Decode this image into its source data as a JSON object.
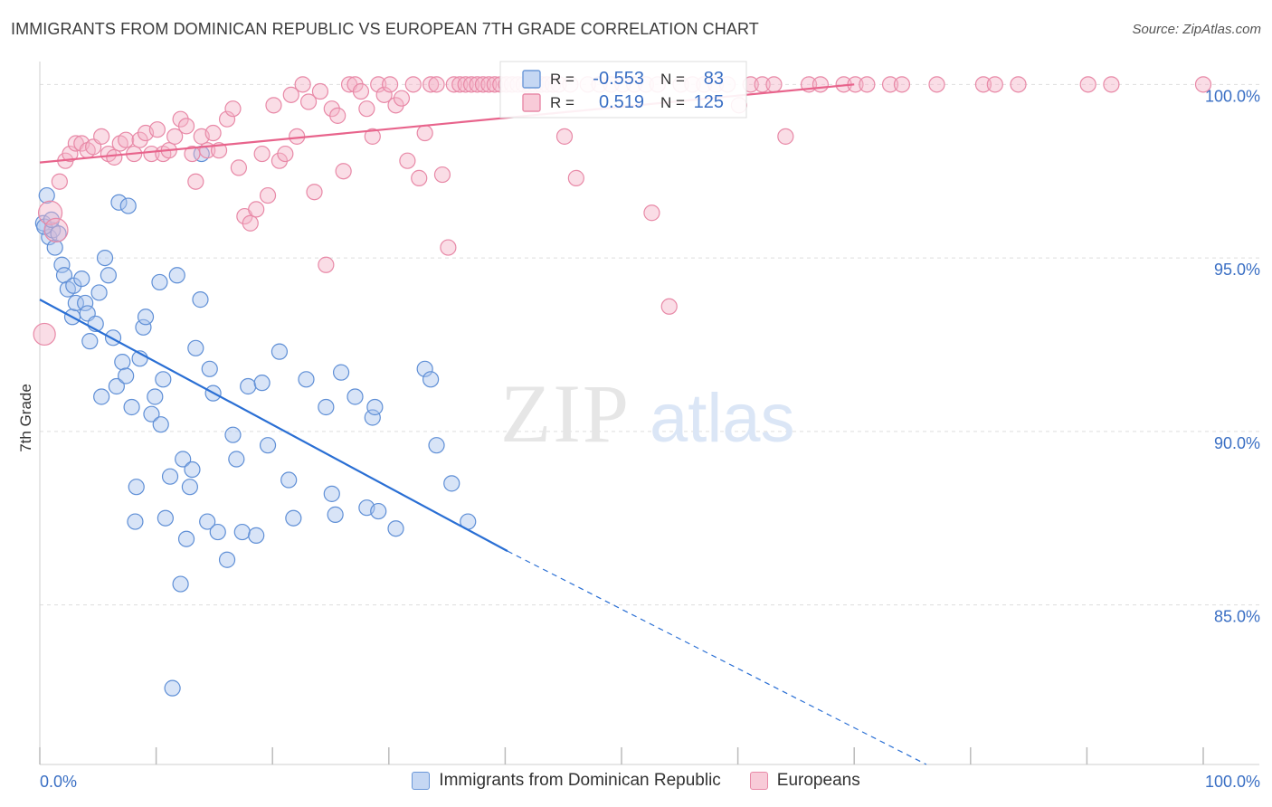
{
  "title": "IMMIGRANTS FROM DOMINICAN REPUBLIC VS EUROPEAN 7TH GRADE CORRELATION CHART",
  "source": "Source: ZipAtlas.com",
  "watermark": {
    "zip": "ZIP",
    "atlas": "atlas"
  },
  "colors": {
    "blue_fill": "#a9c4ee",
    "blue_stroke": "#5f8fd6",
    "blue_line": "#2a6fd4",
    "pink_fill": "#f5b4c7",
    "pink_stroke": "#e889a7",
    "pink_line": "#e8648c",
    "axis_text": "#3a6fc4",
    "grid": "#dddddd"
  },
  "stats_legend": {
    "rows": [
      {
        "r_label": "R =",
        "r_value": "-0.553",
        "n_label": "N =",
        "n_value": "83",
        "series": "blue"
      },
      {
        "r_label": "R =",
        "r_value": "0.519",
        "n_label": "N =",
        "n_value": "125",
        "series": "pink"
      }
    ]
  },
  "chart_data": {
    "type": "scatter",
    "title": "IMMIGRANTS FROM DOMINICAN REPUBLIC VS EUROPEAN 7TH GRADE CORRELATION CHART",
    "xlabel": "",
    "ylabel": "7th Grade",
    "xlim": [
      0,
      100
    ],
    "ylim": [
      80.4,
      100.4
    ],
    "x_tick_labels": [
      "0.0%",
      "100.0%"
    ],
    "y_ticks": [
      85,
      90,
      95,
      100
    ],
    "y_tick_labels": [
      "85.0%",
      "90.0%",
      "95.0%",
      "100.0%"
    ],
    "grid": true,
    "legend_placement": "bottom-center",
    "series": [
      {
        "name": "Immigrants from Dominican Republic",
        "color": "blue",
        "trend": {
          "x": [
            0,
            40.2
          ],
          "y": [
            93.8,
            86.55
          ],
          "dashed_to": [
            76.2,
            80.4
          ]
        },
        "points": [
          [
            0.3,
            96.0
          ],
          [
            0.6,
            96.8
          ],
          [
            0.8,
            95.6
          ],
          [
            1.1,
            95.8
          ],
          [
            1.3,
            95.3
          ],
          [
            1.6,
            95.7
          ],
          [
            1.9,
            94.8
          ],
          [
            2.1,
            94.5
          ],
          [
            2.4,
            94.1
          ],
          [
            2.8,
            93.3
          ],
          [
            2.9,
            94.2
          ],
          [
            3.1,
            93.7
          ],
          [
            3.6,
            94.4
          ],
          [
            3.9,
            93.7
          ],
          [
            4.1,
            93.4
          ],
          [
            4.3,
            92.6
          ],
          [
            4.8,
            93.1
          ],
          [
            5.1,
            94.0
          ],
          [
            5.3,
            91.0
          ],
          [
            5.6,
            95.0
          ],
          [
            5.9,
            94.5
          ],
          [
            6.3,
            92.7
          ],
          [
            6.6,
            91.3
          ],
          [
            6.8,
            96.6
          ],
          [
            7.1,
            92.0
          ],
          [
            7.4,
            91.6
          ],
          [
            7.6,
            96.5
          ],
          [
            7.9,
            90.7
          ],
          [
            8.3,
            88.4
          ],
          [
            8.2,
            87.4
          ],
          [
            8.6,
            92.1
          ],
          [
            8.9,
            93.0
          ],
          [
            9.1,
            93.3
          ],
          [
            9.6,
            90.5
          ],
          [
            9.9,
            91.0
          ],
          [
            10.3,
            94.3
          ],
          [
            10.4,
            90.2
          ],
          [
            10.6,
            91.5
          ],
          [
            10.8,
            87.5
          ],
          [
            11.2,
            88.7
          ],
          [
            11.4,
            82.6
          ],
          [
            11.8,
            94.5
          ],
          [
            12.1,
            85.6
          ],
          [
            12.3,
            89.2
          ],
          [
            12.6,
            86.9
          ],
          [
            12.9,
            88.4
          ],
          [
            13.1,
            88.9
          ],
          [
            13.4,
            92.4
          ],
          [
            13.8,
            93.8
          ],
          [
            13.9,
            98.0
          ],
          [
            14.4,
            87.4
          ],
          [
            14.6,
            91.8
          ],
          [
            14.9,
            91.1
          ],
          [
            15.3,
            87.1
          ],
          [
            16.1,
            86.3
          ],
          [
            16.6,
            89.9
          ],
          [
            16.9,
            89.2
          ],
          [
            17.4,
            87.1
          ],
          [
            17.9,
            91.3
          ],
          [
            18.6,
            87.0
          ],
          [
            19.1,
            91.4
          ],
          [
            19.6,
            89.6
          ],
          [
            20.6,
            92.3
          ],
          [
            21.4,
            88.6
          ],
          [
            21.8,
            87.5
          ],
          [
            22.9,
            91.5
          ],
          [
            24.6,
            90.7
          ],
          [
            25.1,
            88.2
          ],
          [
            25.4,
            87.6
          ],
          [
            25.9,
            91.7
          ],
          [
            27.1,
            91.0
          ],
          [
            28.1,
            87.8
          ],
          [
            28.6,
            90.4
          ],
          [
            28.8,
            90.7
          ],
          [
            29.1,
            87.7
          ],
          [
            30.6,
            87.2
          ],
          [
            33.1,
            91.8
          ],
          [
            33.6,
            91.5
          ],
          [
            34.1,
            89.6
          ],
          [
            35.4,
            88.5
          ],
          [
            36.8,
            87.4
          ],
          [
            0.4,
            95.9
          ],
          [
            1.0,
            96.1
          ]
        ]
      },
      {
        "name": "Europeans",
        "color": "pink",
        "trend": {
          "x": [
            0,
            70
          ],
          "y": [
            97.75,
            100.0
          ]
        },
        "points": [
          [
            0.4,
            92.8
          ],
          [
            0.9,
            96.3
          ],
          [
            1.4,
            95.8
          ],
          [
            1.7,
            97.2
          ],
          [
            2.2,
            97.8
          ],
          [
            2.6,
            98.0
          ],
          [
            3.1,
            98.3
          ],
          [
            3.6,
            98.3
          ],
          [
            4.1,
            98.1
          ],
          [
            4.6,
            98.2
          ],
          [
            5.3,
            98.5
          ],
          [
            5.9,
            98.0
          ],
          [
            6.4,
            97.9
          ],
          [
            6.9,
            98.3
          ],
          [
            7.4,
            98.4
          ],
          [
            8.1,
            98.0
          ],
          [
            8.6,
            98.4
          ],
          [
            9.1,
            98.6
          ],
          [
            9.6,
            98.0
          ],
          [
            10.1,
            98.7
          ],
          [
            10.6,
            98.0
          ],
          [
            11.1,
            98.1
          ],
          [
            11.6,
            98.5
          ],
          [
            12.1,
            99.0
          ],
          [
            12.6,
            98.8
          ],
          [
            13.1,
            98.0
          ],
          [
            13.4,
            97.2
          ],
          [
            13.9,
            98.5
          ],
          [
            14.4,
            98.1
          ],
          [
            14.9,
            98.6
          ],
          [
            15.4,
            98.1
          ],
          [
            16.1,
            99.0
          ],
          [
            16.6,
            99.3
          ],
          [
            17.1,
            97.6
          ],
          [
            17.6,
            96.2
          ],
          [
            18.1,
            96.0
          ],
          [
            18.6,
            96.4
          ],
          [
            19.1,
            98.0
          ],
          [
            19.6,
            96.8
          ],
          [
            20.1,
            99.4
          ],
          [
            20.6,
            97.8
          ],
          [
            21.1,
            98.0
          ],
          [
            21.6,
            99.7
          ],
          [
            22.1,
            98.5
          ],
          [
            22.6,
            100.0
          ],
          [
            23.1,
            99.5
          ],
          [
            23.6,
            96.9
          ],
          [
            24.1,
            99.8
          ],
          [
            24.6,
            94.8
          ],
          [
            25.1,
            99.3
          ],
          [
            25.6,
            99.1
          ],
          [
            26.1,
            97.5
          ],
          [
            26.6,
            100.0
          ],
          [
            27.1,
            100.0
          ],
          [
            27.6,
            99.8
          ],
          [
            28.1,
            99.3
          ],
          [
            28.6,
            98.5
          ],
          [
            29.1,
            100.0
          ],
          [
            29.6,
            99.7
          ],
          [
            30.1,
            100.0
          ],
          [
            30.6,
            99.4
          ],
          [
            31.1,
            99.6
          ],
          [
            31.6,
            97.8
          ],
          [
            32.1,
            100.0
          ],
          [
            32.6,
            97.3
          ],
          [
            33.1,
            98.6
          ],
          [
            33.6,
            100.0
          ],
          [
            34.1,
            100.0
          ],
          [
            34.6,
            97.4
          ],
          [
            35.1,
            95.3
          ],
          [
            35.6,
            100.0
          ],
          [
            36.1,
            100.0
          ],
          [
            36.6,
            100.0
          ],
          [
            37.1,
            100.0
          ],
          [
            37.6,
            100.0
          ],
          [
            38.1,
            100.0
          ],
          [
            38.6,
            100.0
          ],
          [
            39.1,
            100.0
          ],
          [
            39.6,
            100.0
          ],
          [
            40.1,
            100.0
          ],
          [
            40.6,
            100.0
          ],
          [
            41.1,
            100.0
          ],
          [
            41.6,
            100.0
          ],
          [
            42.1,
            100.0
          ],
          [
            42.6,
            100.0
          ],
          [
            43.1,
            100.0
          ],
          [
            43.6,
            100.0
          ],
          [
            44.1,
            100.0
          ],
          [
            44.6,
            100.0
          ],
          [
            45.1,
            98.5
          ],
          [
            45.6,
            100.0
          ],
          [
            46.1,
            97.3
          ],
          [
            47.1,
            100.0
          ],
          [
            48.1,
            100.0
          ],
          [
            49.1,
            100.0
          ],
          [
            50.1,
            100.0
          ],
          [
            51.1,
            100.0
          ],
          [
            52.1,
            100.0
          ],
          [
            52.6,
            96.3
          ],
          [
            53.1,
            100.0
          ],
          [
            54.1,
            93.6
          ],
          [
            55.1,
            100.0
          ],
          [
            56.1,
            100.0
          ],
          [
            57.1,
            100.0
          ],
          [
            58.1,
            100.0
          ],
          [
            59.1,
            100.0
          ],
          [
            60.1,
            99.4
          ],
          [
            61.1,
            100.0
          ],
          [
            62.1,
            100.0
          ],
          [
            63.1,
            100.0
          ],
          [
            64.1,
            98.5
          ],
          [
            66.1,
            100.0
          ],
          [
            67.1,
            100.0
          ],
          [
            69.1,
            100.0
          ],
          [
            70.1,
            100.0
          ],
          [
            71.1,
            100.0
          ],
          [
            73.1,
            100.0
          ],
          [
            74.1,
            100.0
          ],
          [
            77.1,
            100.0
          ],
          [
            81.1,
            100.0
          ],
          [
            82.1,
            100.0
          ],
          [
            84.1,
            100.0
          ],
          [
            90.1,
            100.0
          ],
          [
            92.1,
            100.0
          ],
          [
            100.0,
            100.0
          ]
        ]
      }
    ]
  }
}
